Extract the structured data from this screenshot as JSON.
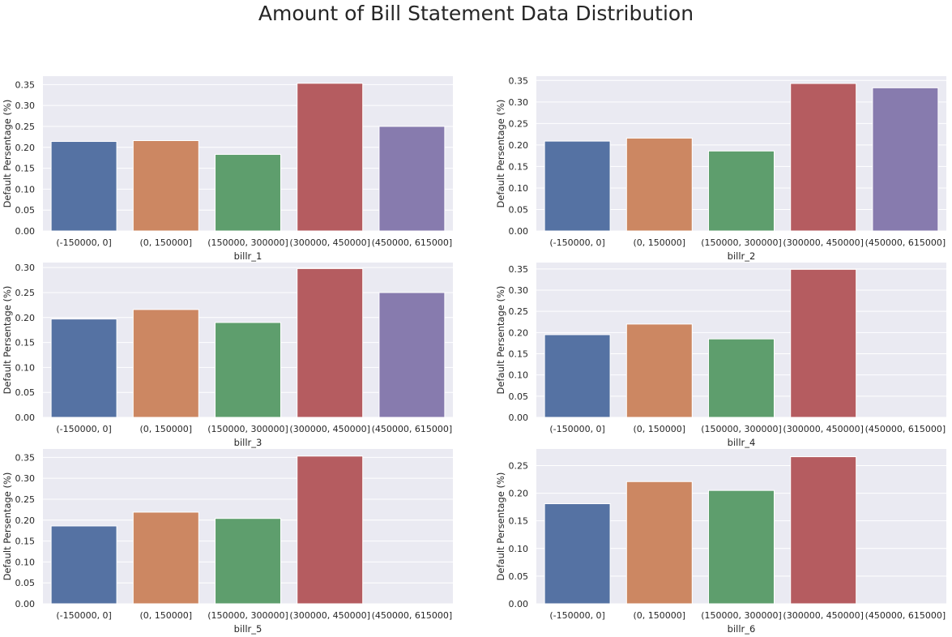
{
  "title": "Amount of Bill Statement Data Distribution",
  "colors": [
    "#5572a3",
    "#cc8762",
    "#5e9e6d",
    "#b55c60",
    "#877bae"
  ],
  "background": "#eaeaf2",
  "chart_data": [
    {
      "type": "bar",
      "xlabel": "billr_1",
      "ylabel": "Default Persentage (%)",
      "categories": [
        "(-150000, 0]",
        "(0, 150000]",
        "(150000, 300000]",
        "(300000, 450000]",
        "(450000, 615000]"
      ],
      "values": [
        0.214,
        0.216,
        0.183,
        0.353,
        0.25
      ],
      "ylim": [
        0,
        0.37
      ],
      "yticks": [
        "0.00",
        "0.05",
        "0.10",
        "0.15",
        "0.20",
        "0.25",
        "0.30",
        "0.35"
      ],
      "grid": true
    },
    {
      "type": "bar",
      "xlabel": "billr_2",
      "ylabel": "Default Persentage (%)",
      "categories": [
        "(-150000, 0]",
        "(0, 150000]",
        "(150000, 300000]",
        "(300000, 450000]",
        "(450000, 615000]"
      ],
      "values": [
        0.209,
        0.216,
        0.186,
        0.343,
        0.333
      ],
      "ylim": [
        0,
        0.36
      ],
      "yticks": [
        "0.00",
        "0.05",
        "0.10",
        "0.15",
        "0.20",
        "0.25",
        "0.30",
        "0.35"
      ],
      "grid": true
    },
    {
      "type": "bar",
      "xlabel": "billr_3",
      "ylabel": "Default Persentage (%)",
      "categories": [
        "(-150000, 0]",
        "(0, 150000]",
        "(150000, 300000]",
        "(300000, 450000]",
        "(450000, 615000]"
      ],
      "values": [
        0.197,
        0.216,
        0.19,
        0.298,
        0.25
      ],
      "ylim": [
        0,
        0.31
      ],
      "yticks": [
        "0.00",
        "0.05",
        "0.10",
        "0.15",
        "0.20",
        "0.25",
        "0.30"
      ],
      "grid": true
    },
    {
      "type": "bar",
      "xlabel": "billr_4",
      "ylabel": "Default Persentage (%)",
      "categories": [
        "(-150000, 0]",
        "(0, 150000]",
        "(150000, 300000]",
        "(300000, 450000]",
        "(450000, 615000]"
      ],
      "values": [
        0.195,
        0.22,
        0.185,
        0.349,
        0.0
      ],
      "ylim": [
        0,
        0.365
      ],
      "yticks": [
        "0.00",
        "0.05",
        "0.10",
        "0.15",
        "0.20",
        "0.25",
        "0.30",
        "0.35"
      ],
      "grid": true
    },
    {
      "type": "bar",
      "xlabel": "billr_5",
      "ylabel": "Default Persentage (%)",
      "categories": [
        "(-150000, 0]",
        "(0, 150000]",
        "(150000, 300000]",
        "(300000, 450000]",
        "(450000, 615000]"
      ],
      "values": [
        0.186,
        0.219,
        0.204,
        0.353,
        0.0
      ],
      "ylim": [
        0,
        0.37
      ],
      "yticks": [
        "0.00",
        "0.05",
        "0.10",
        "0.15",
        "0.20",
        "0.25",
        "0.30",
        "0.35"
      ],
      "grid": true
    },
    {
      "type": "bar",
      "xlabel": "billr_6",
      "ylabel": "Default Persentage (%)",
      "categories": [
        "(-150000, 0]",
        "(0, 150000]",
        "(150000, 300000]",
        "(300000, 450000]",
        "(450000, 615000]"
      ],
      "values": [
        0.181,
        0.221,
        0.205,
        0.266,
        0.0
      ],
      "ylim": [
        0,
        0.28
      ],
      "yticks": [
        "0.00",
        "0.05",
        "0.10",
        "0.15",
        "0.20",
        "0.25"
      ],
      "grid": true
    }
  ]
}
